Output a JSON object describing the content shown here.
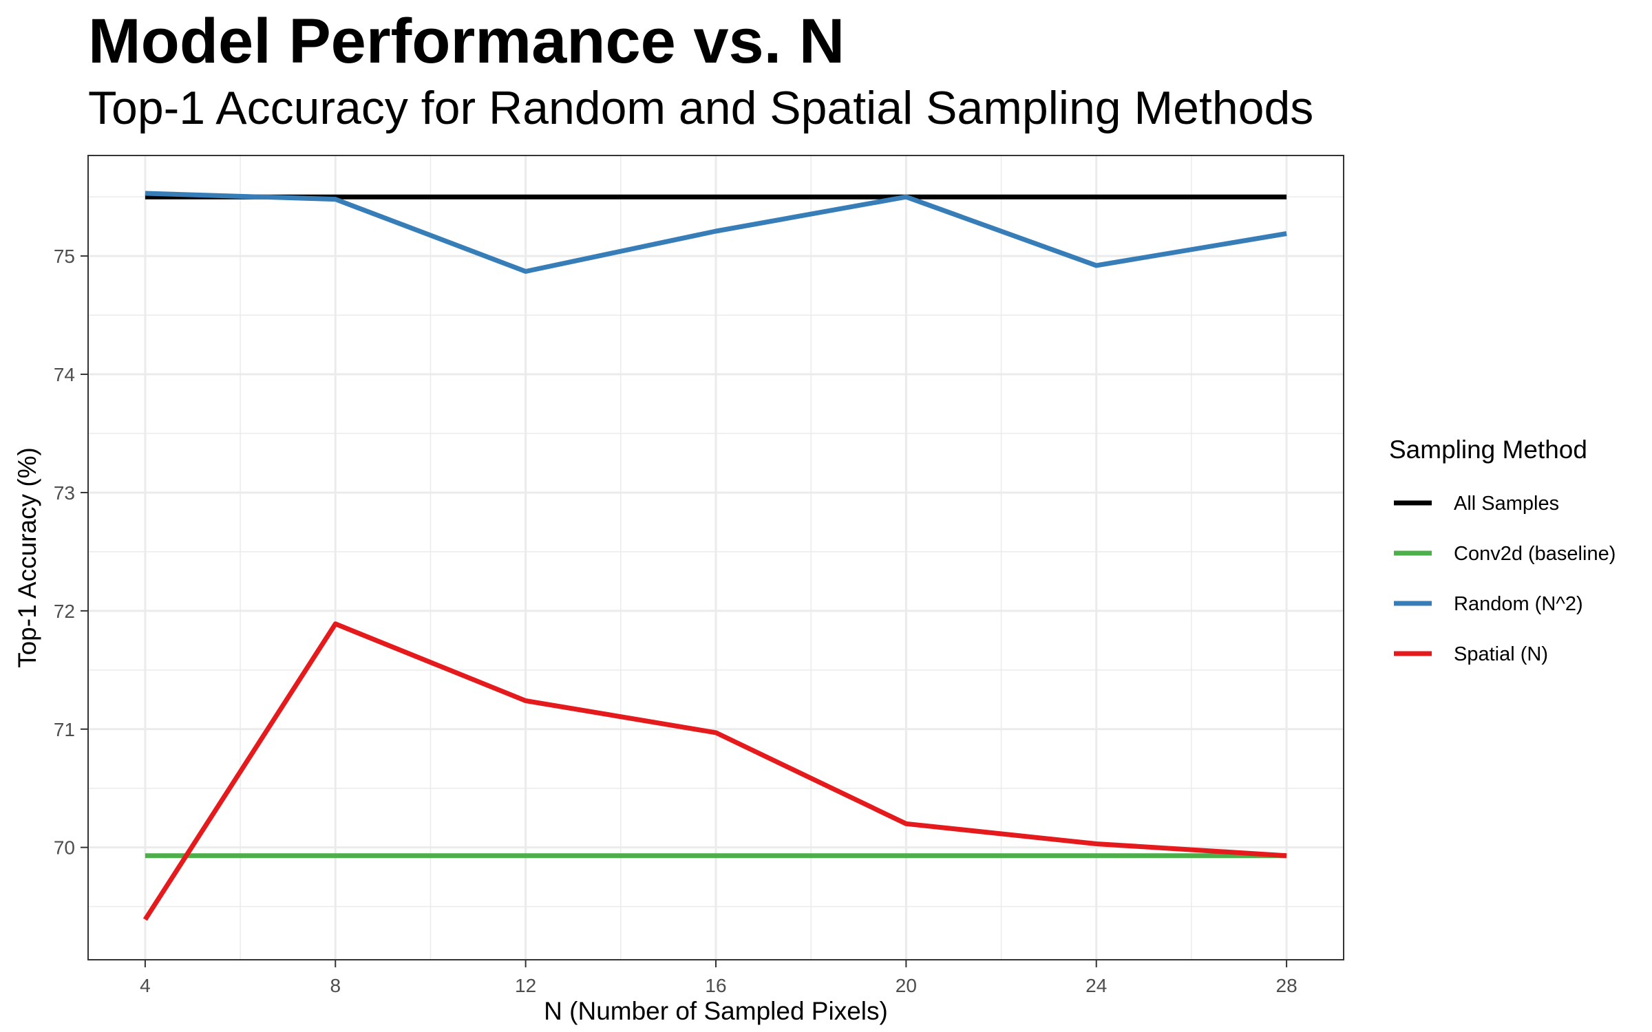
{
  "chart_data": {
    "type": "line",
    "title": "Model Performance vs. N",
    "subtitle": "Top-1 Accuracy for Random and Spatial Sampling Methods",
    "xlabel": "N (Number of Sampled Pixels)",
    "ylabel": "Top-1 Accuracy (%)",
    "x": [
      4,
      8,
      12,
      16,
      20,
      24,
      28
    ],
    "xticks": [
      4,
      8,
      12,
      16,
      20,
      24,
      28
    ],
    "yticks": [
      70,
      71,
      72,
      73,
      74,
      75
    ],
    "xlim": [
      2.8,
      29.2
    ],
    "ylim": [
      69.05,
      75.85
    ],
    "grid": true,
    "legend": {
      "title": "Sampling Method",
      "position": "right"
    },
    "series": [
      {
        "name": "All Samples",
        "color": "#000000",
        "values": [
          75.5,
          75.5,
          75.5,
          75.5,
          75.5,
          75.5,
          75.5
        ]
      },
      {
        "name": "Conv2d (baseline)",
        "color": "#4DAF4A",
        "values": [
          69.93,
          69.93,
          69.93,
          69.93,
          69.93,
          69.93,
          69.93
        ]
      },
      {
        "name": "Random (N^2)",
        "color": "#377EB8",
        "values": [
          75.53,
          75.48,
          74.87,
          75.21,
          75.5,
          74.92,
          75.19
        ]
      },
      {
        "name": "Spatial (N)",
        "color": "#E41A1C",
        "values": [
          69.39,
          71.89,
          71.24,
          70.97,
          70.2,
          70.03,
          69.93
        ]
      }
    ]
  }
}
